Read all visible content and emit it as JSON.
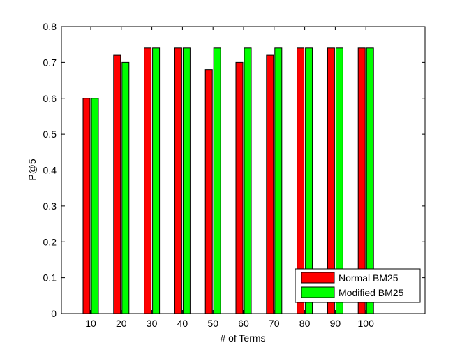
{
  "chart_data": {
    "type": "bar",
    "categories": [
      "10",
      "20",
      "30",
      "40",
      "50",
      "60",
      "70",
      "80",
      "90",
      "100"
    ],
    "series": [
      {
        "name": "Normal BM25",
        "color": "#ff0000",
        "values": [
          0.6,
          0.72,
          0.74,
          0.74,
          0.68,
          0.7,
          0.72,
          0.74,
          0.74,
          0.74
        ]
      },
      {
        "name": "Modified BM25",
        "color": "#00ff00",
        "values": [
          0.6,
          0.7,
          0.74,
          0.74,
          0.74,
          0.74,
          0.74,
          0.74,
          0.74,
          0.74
        ]
      }
    ],
    "xlabel": "# of Terms",
    "ylabel": "P@5",
    "ylim": [
      0,
      0.8
    ],
    "yticks": [
      "0",
      "0.1",
      "0.2",
      "0.3",
      "0.4",
      "0.5",
      "0.6",
      "0.7",
      "0.8"
    ],
    "grid": false,
    "legend_position": "bottom-right"
  }
}
